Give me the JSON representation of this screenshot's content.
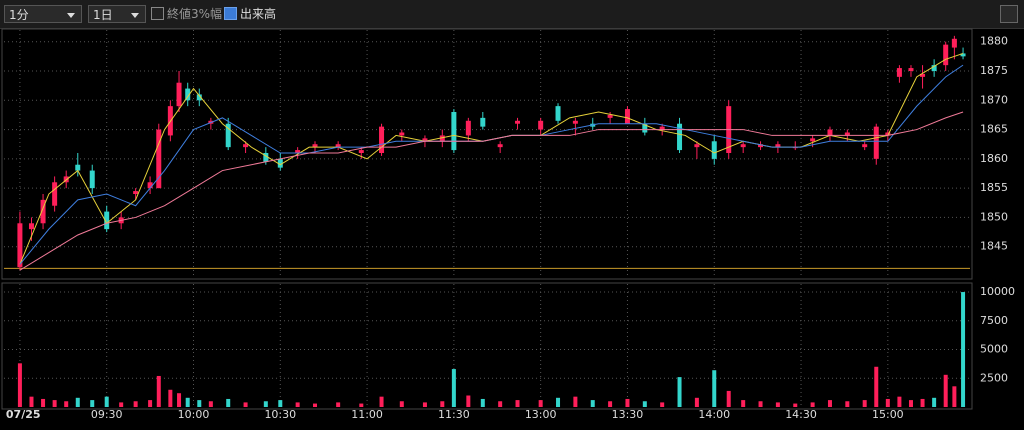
{
  "toolbar": {
    "interval": "1分",
    "period": "1日",
    "option_close": "終値3%幅",
    "option_volume": "出来高"
  },
  "chart_data": [
    {
      "type": "candlestick",
      "up_color": "#ff1f5a",
      "down_color": "#33d6cc",
      "x": [
        0,
        4,
        8,
        12,
        16,
        20,
        25,
        30,
        35,
        40,
        45,
        48,
        52,
        55,
        58,
        62,
        66,
        72,
        78,
        85,
        90,
        96,
        102,
        110,
        118,
        125,
        132,
        140,
        146,
        150,
        155,
        160,
        166,
        172,
        180,
        186,
        192,
        198,
        204,
        210,
        216,
        222,
        228,
        234,
        240,
        245,
        250,
        256,
        262,
        268,
        274,
        280,
        286,
        292,
        296,
        300,
        304,
        308,
        312,
        316,
        320,
        323,
        326
      ],
      "open": [
        1841.5,
        1848,
        1849,
        1852,
        1856,
        1859,
        1858,
        1851,
        1849,
        1854,
        1855,
        1855,
        1864,
        1869,
        1872,
        1871,
        1866,
        1866,
        1862,
        1861,
        1860,
        1861,
        1862,
        1862,
        1861,
        1861,
        1864,
        1863,
        1863,
        1868,
        1864,
        1867,
        1862,
        1866,
        1865,
        1869,
        1866,
        1866,
        1867,
        1866,
        1866,
        1865,
        1866,
        1862,
        1863,
        1861,
        1862,
        1862,
        1862,
        1862,
        1863,
        1864,
        1864,
        1862,
        1860,
        1864,
        1874,
        1875,
        1874,
        1876,
        1876,
        1879,
        1878
      ],
      "high": [
        1851,
        1850,
        1854,
        1857,
        1858,
        1861,
        1859,
        1852,
        1851,
        1855,
        1857,
        1866,
        1870,
        1875,
        1873,
        1872,
        1867,
        1867,
        1863,
        1862,
        1861,
        1862,
        1863,
        1863,
        1862,
        1866,
        1865,
        1864,
        1865,
        1868.5,
        1867,
        1868,
        1863,
        1867,
        1867,
        1869.5,
        1867,
        1867,
        1868,
        1869,
        1867,
        1866,
        1867,
        1863,
        1864,
        1870,
        1863,
        1863,
        1863,
        1863,
        1864,
        1865.5,
        1865,
        1863,
        1866,
        1865,
        1876,
        1876,
        1876,
        1877,
        1880,
        1881,
        1879
      ],
      "low": [
        1841,
        1846,
        1848,
        1851,
        1855,
        1857,
        1854,
        1847.5,
        1848,
        1853,
        1854,
        1855,
        1863,
        1868,
        1869,
        1869,
        1865,
        1861.5,
        1861,
        1859,
        1858,
        1860,
        1861,
        1861.5,
        1860,
        1860.5,
        1863,
        1862,
        1862,
        1861,
        1863,
        1865,
        1861,
        1865,
        1864,
        1866,
        1864,
        1865,
        1866,
        1866,
        1864,
        1864,
        1861,
        1860,
        1859,
        1860,
        1861,
        1861.5,
        1861,
        1861.5,
        1862,
        1863,
        1863,
        1861.5,
        1859,
        1863,
        1873,
        1874,
        1872,
        1874,
        1875,
        1877,
        1877
      ],
      "close": [
        1849,
        1849,
        1853,
        1856,
        1857,
        1858,
        1855,
        1848,
        1850,
        1854.5,
        1856,
        1865,
        1869,
        1873,
        1870,
        1870,
        1866.5,
        1862,
        1862.5,
        1859.5,
        1858.5,
        1861.5,
        1862.5,
        1862.5,
        1861.5,
        1865.5,
        1864.5,
        1863.5,
        1864,
        1861.5,
        1866.5,
        1865.5,
        1862.5,
        1866.5,
        1866.5,
        1866.5,
        1866.5,
        1865.5,
        1867.5,
        1868.5,
        1864.5,
        1865.5,
        1861.5,
        1862.5,
        1860,
        1869,
        1862.5,
        1862.5,
        1862.5,
        1862,
        1863.5,
        1865,
        1864.5,
        1862.5,
        1865.5,
        1864.5,
        1875.5,
        1875.5,
        1874.5,
        1875,
        1879.5,
        1880.5,
        1877.5
      ],
      "series": [
        {
          "color": "#e6d13a",
          "x": [
            0,
            10,
            20,
            30,
            40,
            50,
            60,
            70,
            80,
            90,
            100,
            110,
            120,
            130,
            140,
            150,
            160,
            170,
            180,
            190,
            200,
            210,
            220,
            230,
            240,
            250,
            260,
            270,
            280,
            290,
            300,
            310,
            320,
            326
          ],
          "values": [
            1842,
            1854,
            1858,
            1849,
            1853,
            1865,
            1872,
            1866,
            1862,
            1859,
            1862,
            1862,
            1860,
            1864,
            1863,
            1864,
            1863,
            1864,
            1864,
            1867,
            1868,
            1867,
            1865,
            1864,
            1861,
            1863,
            1862,
            1862,
            1864,
            1863,
            1864,
            1874,
            1877,
            1878
          ]
        },
        {
          "color": "#3f7fe0",
          "x": [
            0,
            10,
            20,
            30,
            40,
            50,
            60,
            70,
            80,
            90,
            100,
            110,
            120,
            130,
            140,
            150,
            160,
            170,
            180,
            190,
            200,
            210,
            220,
            230,
            240,
            250,
            260,
            270,
            280,
            290,
            300,
            310,
            320,
            326
          ],
          "values": [
            1842,
            1848,
            1853,
            1854,
            1852,
            1858,
            1865,
            1867,
            1864,
            1861,
            1861,
            1862,
            1862,
            1863,
            1863,
            1863,
            1863,
            1864,
            1864,
            1865,
            1866,
            1866,
            1866,
            1865,
            1864,
            1863,
            1862,
            1862,
            1863,
            1863,
            1863,
            1869,
            1874,
            1876
          ]
        },
        {
          "color": "#f07a98",
          "x": [
            0,
            10,
            20,
            30,
            40,
            50,
            60,
            70,
            80,
            90,
            100,
            110,
            120,
            130,
            140,
            150,
            160,
            170,
            180,
            190,
            200,
            210,
            220,
            230,
            240,
            250,
            260,
            270,
            280,
            290,
            300,
            310,
            320,
            326
          ],
          "values": [
            1841,
            1844,
            1847,
            1849,
            1850,
            1852,
            1855,
            1858,
            1859,
            1860,
            1861,
            1861,
            1862,
            1862,
            1863,
            1863,
            1863,
            1864,
            1864,
            1864,
            1865,
            1865,
            1865,
            1865,
            1865,
            1865,
            1864,
            1864,
            1864,
            1864,
            1864,
            1865,
            1867,
            1868
          ]
        }
      ],
      "hline": 1841.3,
      "hline_color": "#c89a2a",
      "xlim": [
        -5.5,
        328.4
      ],
      "ylim": [
        1840,
        1882
      ],
      "yticks": [
        1845,
        1850,
        1855,
        1860,
        1865,
        1870,
        1875,
        1880
      ],
      "grid": true
    },
    {
      "type": "bar",
      "x": [
        0,
        4,
        8,
        12,
        16,
        20,
        25,
        30,
        35,
        40,
        45,
        48,
        52,
        55,
        58,
        62,
        66,
        72,
        78,
        85,
        90,
        96,
        102,
        110,
        118,
        125,
        132,
        140,
        146,
        150,
        155,
        160,
        166,
        172,
        180,
        186,
        192,
        198,
        204,
        210,
        216,
        222,
        228,
        234,
        240,
        245,
        250,
        256,
        262,
        268,
        274,
        280,
        286,
        292,
        296,
        300,
        304,
        308,
        312,
        316,
        320,
        323,
        326
      ],
      "values": [
        3800,
        900,
        700,
        600,
        500,
        800,
        600,
        900,
        400,
        500,
        600,
        2700,
        1500,
        1200,
        800,
        600,
        500,
        700,
        400,
        500,
        600,
        400,
        300,
        400,
        300,
        900,
        500,
        400,
        500,
        3300,
        1000,
        700,
        500,
        600,
        600,
        800,
        900,
        600,
        500,
        700,
        500,
        400,
        2600,
        800,
        3200,
        1400,
        600,
        500,
        400,
        300,
        400,
        600,
        500,
        600,
        3500,
        700,
        900,
        600,
        700,
        800,
        2800,
        1800,
        10000
      ],
      "xlim": [
        -5.5,
        328.4
      ],
      "ylim": [
        0,
        10700
      ],
      "yticks": [
        2500,
        5000,
        7500,
        10000
      ],
      "xticks": [
        {
          "value": 0,
          "label": "07/25"
        },
        {
          "value": 30,
          "label": "09:30"
        },
        {
          "value": 60,
          "label": "10:00"
        },
        {
          "value": 90,
          "label": "10:30"
        },
        {
          "value": 120,
          "label": "11:00"
        },
        {
          "value": 150,
          "label": "11:30"
        },
        {
          "value": 180,
          "label": "13:00"
        },
        {
          "value": 210,
          "label": "13:30"
        },
        {
          "value": 240,
          "label": "14:00"
        },
        {
          "value": 270,
          "label": "14:30"
        },
        {
          "value": 300,
          "label": "15:00"
        }
      ],
      "grid": true
    }
  ]
}
